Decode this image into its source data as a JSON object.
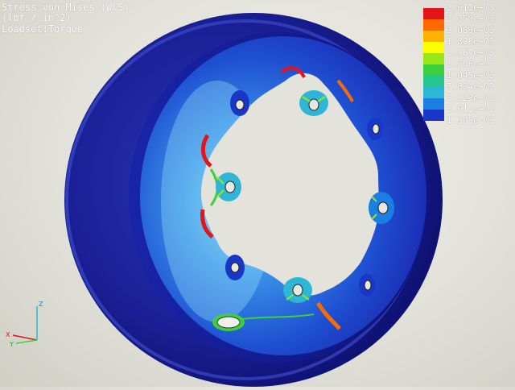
{
  "header": {
    "line1": "Stress von Mises (WCS)",
    "line2": "(lbf / in^2)",
    "line3": "Loadset:Torque"
  },
  "legend": {
    "labels": [
      "2.611e+03",
      "2.350e+03",
      "2.089e+03",
      "1.828e+03",
      "1.567e+03",
      "1.306e+03",
      "1.045e+03",
      "7.834e+02",
      "5.223e+02",
      "2.611e+02",
      "1.305e-03"
    ],
    "colors": [
      "#e3141a",
      "#ff6a00",
      "#ffb000",
      "#ffff00",
      "#9ae617",
      "#3cd13c",
      "#26c78e",
      "#2fb6d6",
      "#1a7fe0",
      "#1836c8",
      "#0b0b9e"
    ]
  },
  "triad": {
    "z": "Z",
    "x": "X",
    "y": "Y"
  }
}
